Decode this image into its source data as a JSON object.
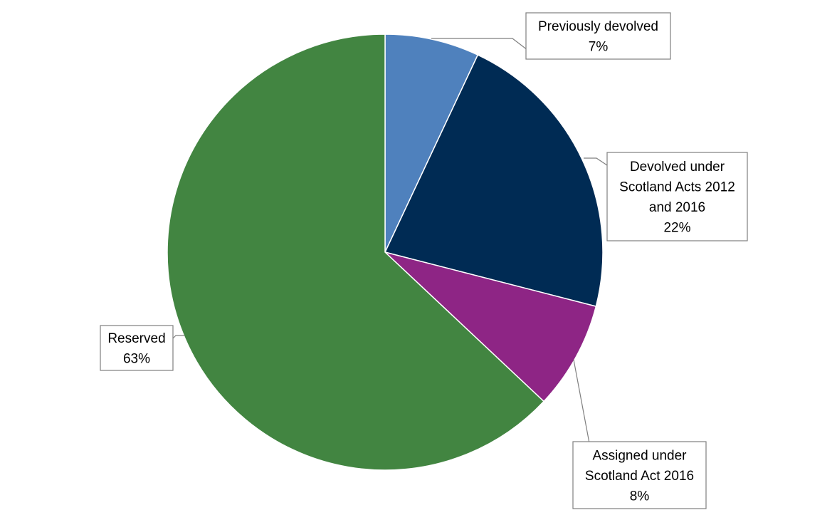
{
  "chart_data": {
    "type": "pie",
    "title": "",
    "slices": [
      {
        "label_lines": [
          "Previously devolved"
        ],
        "value_label": "7%",
        "value": 7,
        "color": "#4f81bd"
      },
      {
        "label_lines": [
          "Devolved under",
          "Scotland Acts 2012",
          "and 2016"
        ],
        "value_label": "22%",
        "value": 22,
        "color": "#002b54"
      },
      {
        "label_lines": [
          "Assigned under",
          "Scotland Act 2016"
        ],
        "value_label": "8%",
        "value": 8,
        "color": "#8e2585"
      },
      {
        "label_lines": [
          "Reserved"
        ],
        "value_label": "63%",
        "value": 63,
        "color": "#428541"
      }
    ],
    "start": "12 o'clock",
    "direction": "clockwise",
    "legend": "none"
  }
}
